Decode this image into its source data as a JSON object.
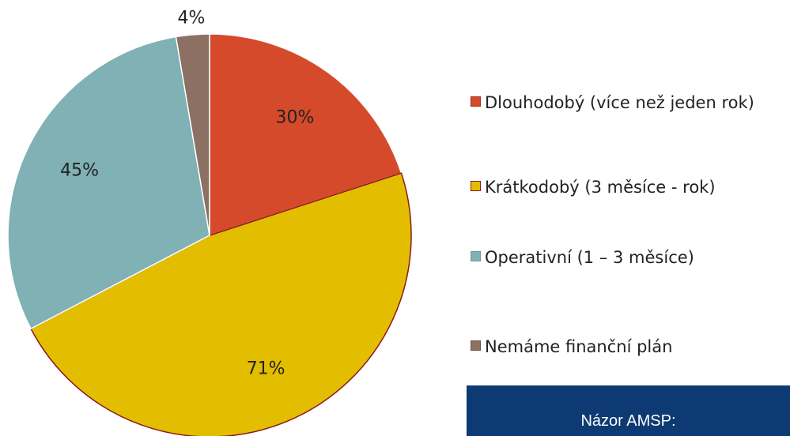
{
  "chart_data": {
    "type": "pie",
    "categories": [
      "Dlouhodobý (více než jeden rok)",
      "Krátkodobý (3 měsíce - rok)",
      "Operativní (1 – 3 měsíce)",
      "Nemáme finanční plán"
    ],
    "values": [
      30,
      71,
      45,
      4
    ],
    "value_labels": [
      "30%",
      "71%",
      "45%",
      "4%"
    ],
    "colors": [
      "#d64a2c",
      "#e3be00",
      "#7fb1b5",
      "#8d7064"
    ],
    "legend": "right"
  },
  "note_box": {
    "text": "Názor AMSP:"
  }
}
